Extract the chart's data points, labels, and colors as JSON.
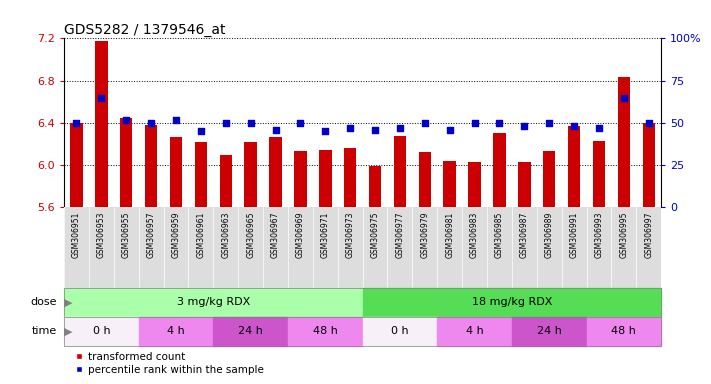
{
  "title": "GDS5282 / 1379546_at",
  "samples": [
    "GSM306951",
    "GSM306953",
    "GSM306955",
    "GSM306957",
    "GSM306959",
    "GSM306961",
    "GSM306963",
    "GSM306965",
    "GSM306967",
    "GSM306969",
    "GSM306971",
    "GSM306973",
    "GSM306975",
    "GSM306977",
    "GSM306979",
    "GSM306981",
    "GSM306983",
    "GSM306985",
    "GSM306987",
    "GSM306989",
    "GSM306991",
    "GSM306993",
    "GSM306995",
    "GSM306997"
  ],
  "transformed_count": [
    6.4,
    7.18,
    6.45,
    6.38,
    6.27,
    6.22,
    6.1,
    6.22,
    6.27,
    6.13,
    6.14,
    6.16,
    5.99,
    6.28,
    6.12,
    6.04,
    6.03,
    6.3,
    6.03,
    6.13,
    6.37,
    6.23,
    6.83,
    6.4
  ],
  "percentile_rank": [
    50,
    65,
    52,
    50,
    52,
    45,
    50,
    50,
    46,
    50,
    45,
    47,
    46,
    47,
    50,
    46,
    50,
    50,
    48,
    50,
    48,
    47,
    65,
    50
  ],
  "ylim_left": [
    5.6,
    7.2
  ],
  "ylim_right": [
    0,
    100
  ],
  "yticks_left": [
    5.6,
    6.0,
    6.4,
    6.8,
    7.2
  ],
  "yticks_right": [
    0,
    25,
    50,
    75,
    100
  ],
  "bar_color": "#cc0000",
  "dot_color": "#0000cc",
  "bar_baseline": 5.6,
  "dose_groups": [
    {
      "label": "3 mg/kg RDX",
      "start": 0,
      "end": 12,
      "color": "#aaffaa"
    },
    {
      "label": "18 mg/kg RDX",
      "start": 12,
      "end": 24,
      "color": "#55dd55"
    }
  ],
  "time_groups": [
    {
      "label": "0 h",
      "start": 0,
      "end": 3,
      "color": "#f8f0f8"
    },
    {
      "label": "4 h",
      "start": 3,
      "end": 6,
      "color": "#ee88ee"
    },
    {
      "label": "24 h",
      "start": 6,
      "end": 9,
      "color": "#cc55cc"
    },
    {
      "label": "48 h",
      "start": 9,
      "end": 12,
      "color": "#ee88ee"
    },
    {
      "label": "0 h",
      "start": 12,
      "end": 15,
      "color": "#f8f0f8"
    },
    {
      "label": "4 h",
      "start": 15,
      "end": 18,
      "color": "#ee88ee"
    },
    {
      "label": "24 h",
      "start": 18,
      "end": 21,
      "color": "#cc55cc"
    },
    {
      "label": "48 h",
      "start": 21,
      "end": 24,
      "color": "#ee88ee"
    }
  ],
  "legend_bar_label": "transformed count",
  "legend_dot_label": "percentile rank within the sample",
  "plot_bg_color": "#ffffff",
  "label_area_color": "#dddddd",
  "tick_fontsize": 8,
  "title_fontsize": 10
}
